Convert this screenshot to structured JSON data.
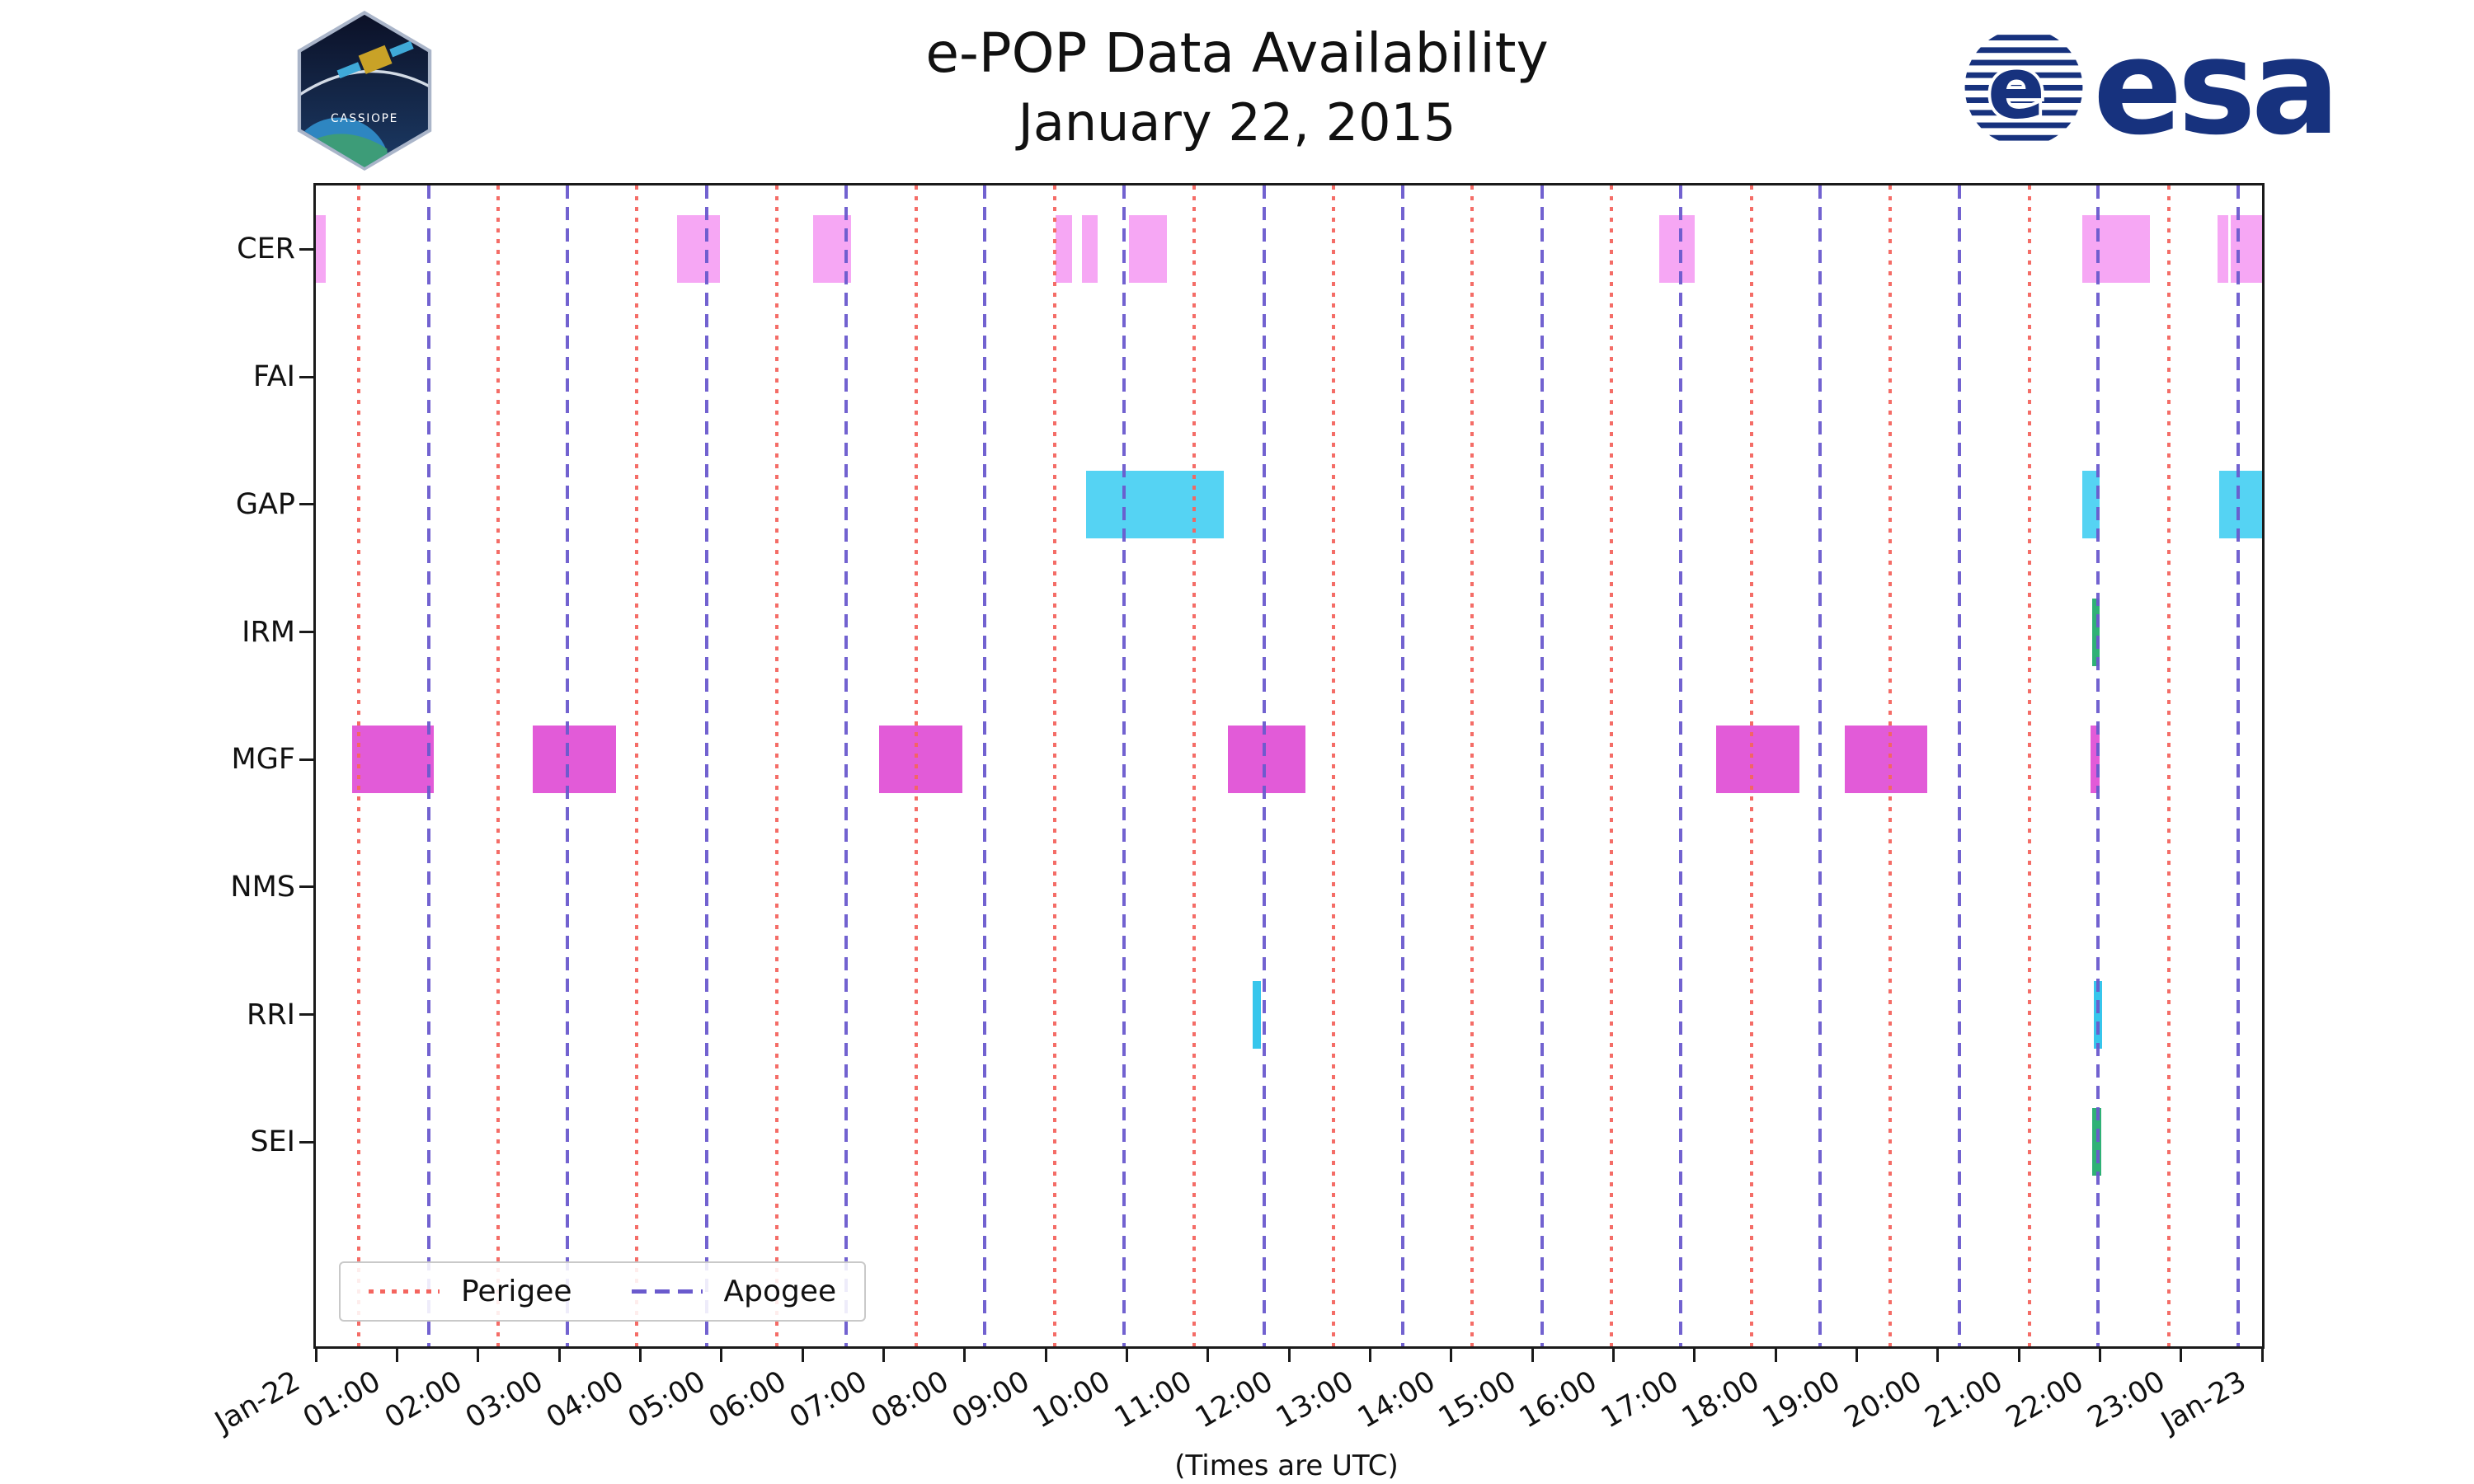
{
  "branding": {
    "esa_wordmark": "esa",
    "esa_color": "#17327e",
    "patch_label": "CASSIOPE"
  },
  "chart_data": {
    "type": "gantt-timeline",
    "title": "e-POP Data Availability",
    "subtitle": "January 22, 2015",
    "xlabel": "(Times are UTC)",
    "x_range_hours": [
      0,
      24
    ],
    "x_tick_labels": [
      "Jan-22",
      "01:00",
      "02:00",
      "03:00",
      "04:00",
      "05:00",
      "06:00",
      "07:00",
      "08:00",
      "09:00",
      "10:00",
      "11:00",
      "12:00",
      "13:00",
      "14:00",
      "15:00",
      "16:00",
      "17:00",
      "18:00",
      "19:00",
      "20:00",
      "21:00",
      "22:00",
      "23:00",
      "Jan-23"
    ],
    "rows": [
      "CER",
      "FAI",
      "GAP",
      "IRM",
      "MGF",
      "NMS",
      "RRI",
      "SEI"
    ],
    "row_slots": 9.1,
    "row_colors": {
      "CER": "#f6a7f4",
      "FAI": "#f6a7f4",
      "GAP": "#55d3f3",
      "IRM": "#2fb176",
      "MGF": "#e25bd8",
      "NMS": "#e25bd8",
      "RRI": "#37c6ec",
      "SEI": "#2fb176"
    },
    "legend": [
      {
        "label": "Perigee",
        "color": "#f4655f",
        "style": "dotted"
      },
      {
        "label": "Apogee",
        "color": "#6a5acd",
        "style": "dashed"
      }
    ],
    "perigee_hours": [
      0.53,
      2.25,
      3.96,
      5.68,
      7.4,
      9.11,
      10.83,
      12.55,
      14.26,
      15.98,
      17.7,
      19.41,
      21.13,
      22.85
    ],
    "apogee_hours": [
      1.39,
      3.1,
      4.82,
      6.54,
      8.25,
      9.97,
      11.69,
      13.4,
      15.12,
      16.83,
      18.55,
      20.27,
      21.98,
      23.7
    ],
    "bars": [
      {
        "row": "CER",
        "start": 0.0,
        "end": 0.12
      },
      {
        "row": "CER",
        "start": 4.45,
        "end": 4.98
      },
      {
        "row": "CER",
        "start": 6.13,
        "end": 6.6
      },
      {
        "row": "CER",
        "start": 9.12,
        "end": 9.33
      },
      {
        "row": "CER",
        "start": 9.45,
        "end": 9.64
      },
      {
        "row": "CER",
        "start": 10.03,
        "end": 10.5
      },
      {
        "row": "CER",
        "start": 16.57,
        "end": 17.0
      },
      {
        "row": "CER",
        "start": 21.78,
        "end": 22.62
      },
      {
        "row": "CER",
        "start": 23.45,
        "end": 23.58
      },
      {
        "row": "CER",
        "start": 23.61,
        "end": 24.0
      },
      {
        "row": "GAP",
        "start": 9.5,
        "end": 11.2
      },
      {
        "row": "GAP",
        "start": 21.78,
        "end": 22.0
      },
      {
        "row": "GAP",
        "start": 23.47,
        "end": 24.0
      },
      {
        "row": "IRM",
        "start": 21.9,
        "end": 22.0
      },
      {
        "row": "MGF",
        "start": 0.45,
        "end": 1.45
      },
      {
        "row": "MGF",
        "start": 2.67,
        "end": 3.7
      },
      {
        "row": "MGF",
        "start": 6.95,
        "end": 7.97
      },
      {
        "row": "MGF",
        "start": 11.25,
        "end": 12.2
      },
      {
        "row": "MGF",
        "start": 17.27,
        "end": 18.3
      },
      {
        "row": "MGF",
        "start": 18.85,
        "end": 19.87
      },
      {
        "row": "MGF",
        "start": 21.88,
        "end": 22.0
      },
      {
        "row": "RRI",
        "start": 11.55,
        "end": 11.65
      },
      {
        "row": "RRI",
        "start": 21.93,
        "end": 22.03
      },
      {
        "row": "SEI",
        "start": 21.9,
        "end": 22.02
      }
    ]
  }
}
